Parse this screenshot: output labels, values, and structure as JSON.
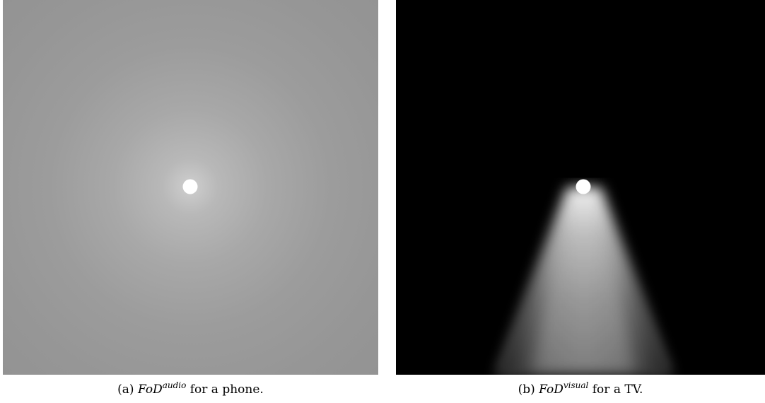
{
  "figures": [
    {
      "label": "(a)",
      "math_base": "FoD",
      "math_sup": "audio",
      "suffix": "for a phone."
    },
    {
      "label": "(b)",
      "math_base": "FoD",
      "math_sup": "visual",
      "suffix": "for a TV."
    }
  ],
  "colors": {
    "panel_a_center": "#cfcfcf",
    "panel_a_edge": "#8e8e8e",
    "panel_b_background": "#000000",
    "cone_peak": "#bdbdbd",
    "device_dot": "#ffffff"
  }
}
